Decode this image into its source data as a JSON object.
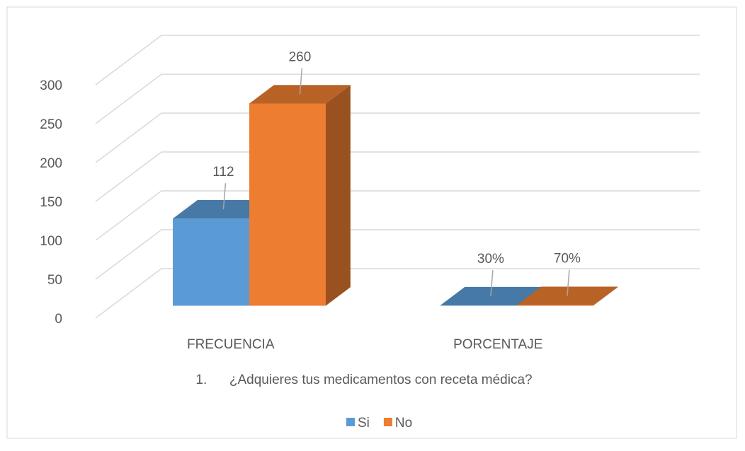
{
  "chart_data": {
    "type": "bar3d",
    "xlabel": "1.      ¿Adquieres tus medicamentos con receta médica?",
    "categories": [
      "FRECUENCIA",
      "PORCENTAJE"
    ],
    "series": [
      {
        "name": "Si",
        "color": "#5b9bd5",
        "values": [
          112,
          0.3
        ],
        "value_labels": [
          "112",
          "30%"
        ]
      },
      {
        "name": "No",
        "color": "#ed7d31",
        "values": [
          260,
          0.7
        ],
        "value_labels": [
          "260",
          "70%"
        ]
      }
    ],
    "ylim": [
      0,
      300
    ],
    "yticks": [
      0,
      50,
      100,
      150,
      200,
      250,
      300
    ],
    "grid": true,
    "legend": "bottom"
  }
}
